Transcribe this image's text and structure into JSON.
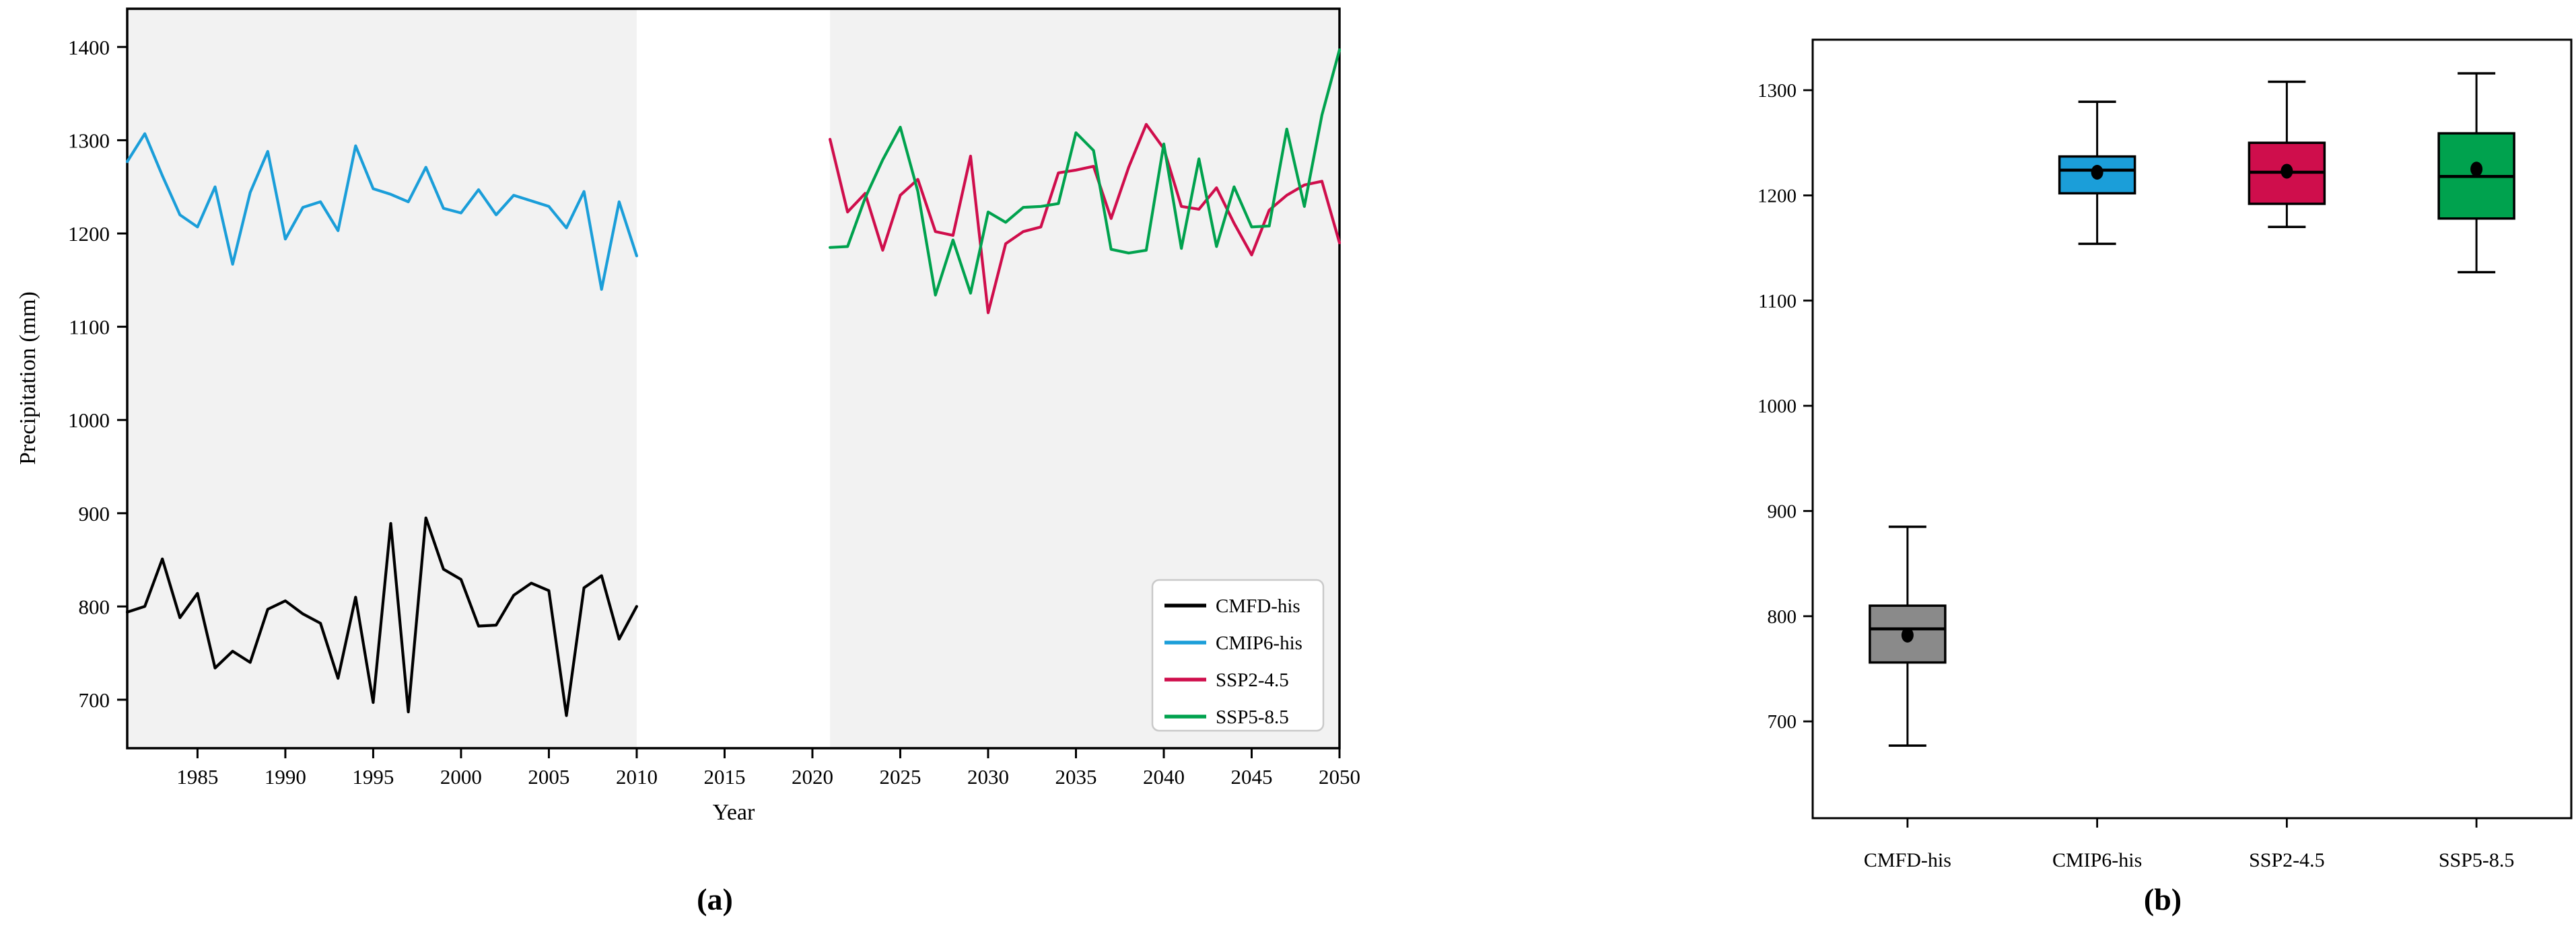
{
  "figure": {
    "background": "#ffffff",
    "description": "Two-panel precipitation figure",
    "panel_a_label": "(a)",
    "panel_b_label": "(b)"
  },
  "chart_data": [
    {
      "type": "line",
      "panel_label": "(a)",
      "title": "",
      "xlabel": "Year",
      "ylabel": "Precipitation (mm)",
      "xlim": [
        1981,
        2050
      ],
      "ylim": [
        648,
        1441
      ],
      "xticks": [
        1985,
        1990,
        1995,
        2000,
        2005,
        2010,
        2015,
        2020,
        2025,
        2030,
        2035,
        2040,
        2045,
        2050
      ],
      "yticks": [
        700,
        800,
        900,
        1000,
        1100,
        1200,
        1300,
        1400
      ],
      "grid": false,
      "band_color": "#f2f2f2",
      "shaded_bands": [
        {
          "x0": 1981,
          "x1": 2010
        },
        {
          "x0": 2021,
          "x1": 2050
        }
      ],
      "legend": {
        "position": "lower right",
        "entries": [
          "CMFD-his",
          "CMIP6-his",
          "SSP2-4.5",
          "SSP5-8.5"
        ]
      },
      "series": [
        {
          "name": "CMFD-his",
          "color": "#000000",
          "x_start": 1981,
          "x_step": 1,
          "values": [
            794,
            800,
            851,
            788,
            814,
            734,
            752,
            740,
            797,
            806,
            792,
            782,
            723,
            810,
            697,
            889,
            687,
            895,
            840,
            829,
            779,
            780,
            812,
            825,
            817,
            683,
            820,
            833,
            765,
            800
          ]
        },
        {
          "name": "CMIP6-his",
          "color": "#1b9ed9",
          "x_start": 1981,
          "x_step": 1,
          "values": [
            1277,
            1307,
            1262,
            1220,
            1207,
            1250,
            1167,
            1244,
            1288,
            1194,
            1228,
            1234,
            1203,
            1294,
            1248,
            1242,
            1234,
            1271,
            1227,
            1222,
            1247,
            1220,
            1241,
            1235,
            1229,
            1206,
            1245,
            1140,
            1234,
            1176
          ]
        },
        {
          "name": "SSP2-4.5",
          "color": "#cf0e4c",
          "x_start": 2021,
          "x_step": 1,
          "values": [
            1301,
            1223,
            1243,
            1182,
            1241,
            1258,
            1202,
            1198,
            1283,
            1115,
            1189,
            1202,
            1207,
            1265,
            1268,
            1272,
            1216,
            1271,
            1317,
            1291,
            1229,
            1226,
            1249,
            1211,
            1177,
            1225,
            1241,
            1252,
            1256,
            1190
          ]
        },
        {
          "name": "SSP5-8.5",
          "color": "#00a24e",
          "x_start": 2021,
          "x_step": 1,
          "values": [
            1185,
            1186,
            1238,
            1279,
            1314,
            1245,
            1134,
            1193,
            1136,
            1223,
            1212,
            1228,
            1229,
            1232,
            1308,
            1289,
            1183,
            1179,
            1182,
            1296,
            1184,
            1280,
            1186,
            1250,
            1207,
            1208,
            1312,
            1229,
            1327,
            1397
          ]
        }
      ]
    },
    {
      "type": "box",
      "panel_label": "(b)",
      "title": "",
      "xlabel": "",
      "ylabel": "",
      "ylim": [
        608,
        1348
      ],
      "yticks": [
        700,
        800,
        900,
        1000,
        1100,
        1200,
        1300
      ],
      "grid": false,
      "categories": [
        "CMFD-his",
        "CMIP6-his",
        "SSP2-4.5",
        "SSP5-8.5"
      ],
      "boxes": [
        {
          "label": "CMFD-his",
          "color": "#8a8a8a",
          "whislo": 677,
          "q1": 756,
          "med": 788,
          "mean": 782,
          "q3": 810,
          "whishi": 885
        },
        {
          "label": "CMIP6-his",
          "color": "#1b9ed9",
          "whislo": 1154,
          "q1": 1202,
          "med": 1224,
          "mean": 1222,
          "q3": 1237,
          "whishi": 1289
        },
        {
          "label": "SSP2-4.5",
          "color": "#cf0e4c",
          "whislo": 1170,
          "q1": 1192,
          "med": 1222,
          "mean": 1223,
          "q3": 1250,
          "whishi": 1308
        },
        {
          "label": "SSP5-8.5",
          "color": "#00a24e",
          "whislo": 1127,
          "q1": 1178,
          "med": 1218,
          "mean": 1225,
          "q3": 1259,
          "whishi": 1316
        }
      ]
    }
  ]
}
